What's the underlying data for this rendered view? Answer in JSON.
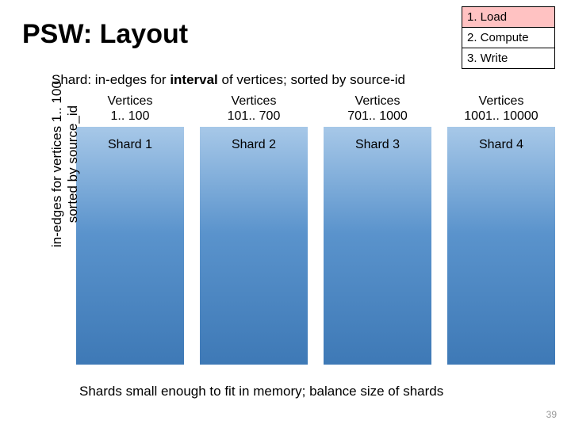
{
  "title": "PSW: Layout",
  "steps": [
    {
      "label": "1. Load",
      "active": true
    },
    {
      "label": "2. Compute",
      "active": false
    },
    {
      "label": "3. Write",
      "active": false
    }
  ],
  "subheading_prefix": "Shard: in-edges for ",
  "subheading_bold": "interval",
  "subheading_suffix": " of vertices; sorted by source-id",
  "columns": [
    {
      "header_line1": "Vertices",
      "header_line2": "1.. 100",
      "shard_label": "Shard 1"
    },
    {
      "header_line1": "Vertices",
      "header_line2": "101.. 700",
      "shard_label": "Shard 2"
    },
    {
      "header_line1": "Vertices",
      "header_line2": "701.. 1000",
      "shard_label": "Shard 3"
    },
    {
      "header_line1": "Vertices",
      "header_line2": "1001.. 10000",
      "shard_label": "Shard 4"
    }
  ],
  "ylabel_line1": "in-edges for vertices 1.. 100",
  "ylabel_line2": "sorted by source_id",
  "footer": "Shards small enough to fit in memory; balance size of shards",
  "page_number": "39",
  "colors": {
    "step_active_bg": "#ffc2c2",
    "shard_gradient_top": "#a7c8e8",
    "shard_gradient_mid": "#5a93cc",
    "shard_gradient_bottom": "#3e79b6",
    "background": "#ffffff"
  }
}
